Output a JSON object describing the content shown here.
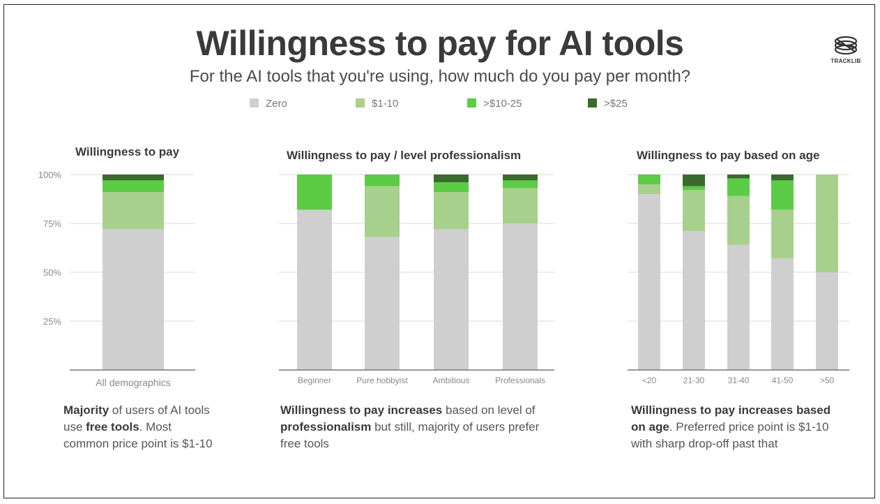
{
  "title": "Willingness to pay for AI tools",
  "subtitle": "For the AI tools that you're using, how much do you pay per month?",
  "logo_text": "TRACKLIB",
  "colors": {
    "zero": "#cfcfcf",
    "p1_10": "#a8d08d",
    "p10_25": "#5ccb46",
    "p25": "#3a6b2c",
    "grid": "#d9d9d9",
    "axis": "#777777"
  },
  "legend": [
    {
      "label": "Zero",
      "color": "#cfcfcf"
    },
    {
      "label": "$1-10",
      "color": "#a8d08d"
    },
    {
      "label": ">$10-25",
      "color": "#5ccb46"
    },
    {
      "label": ">$25",
      "color": "#3a6b2c"
    }
  ],
  "panels": [
    {
      "title": "Willingness to pay"
    },
    {
      "title": "Willingness to pay / level professionalism"
    },
    {
      "title": "Willingness to pay based on age"
    }
  ],
  "descriptions": {
    "d1": {
      "a": "Majority",
      "b": " of users of AI tools use ",
      "c": "free tools",
      "d": ". Most common price point is $1-10"
    },
    "d2": {
      "a": "Willingness to pay increases",
      "b": " based on level of ",
      "c": "professionalism",
      "d": " but still, majority of users prefer free tools"
    },
    "d3": {
      "a": "Willingness to pay increases based on age",
      "b": ". Preferred price point is $1-10 with sharp drop-off past that"
    }
  },
  "chart_data": [
    {
      "type": "bar",
      "stacked": true,
      "title": "Willingness to pay",
      "categories": [
        "All demographics"
      ],
      "yticks": [
        "100%",
        "75%",
        "50%",
        "25%"
      ],
      "ylim": [
        0,
        100
      ],
      "series": [
        {
          "name": "Zero",
          "values": [
            72
          ]
        },
        {
          "name": "$1-10",
          "values": [
            19
          ]
        },
        {
          "name": "$10-25",
          "values": [
            6
          ]
        },
        {
          "name": ">$25",
          "values": [
            3
          ]
        }
      ]
    },
    {
      "type": "bar",
      "stacked": true,
      "title": "Willingness to pay / level professionalism",
      "categories": [
        "Beginner",
        "Pure hobbyist",
        "Ambitious",
        "Professionals"
      ],
      "ylim": [
        0,
        100
      ],
      "series": [
        {
          "name": "Zero",
          "values": [
            82,
            68,
            72,
            75
          ]
        },
        {
          "name": "$1-10",
          "values": [
            0,
            26,
            19,
            18
          ]
        },
        {
          "name": "$10-25",
          "values": [
            18,
            6,
            5,
            4
          ]
        },
        {
          "name": ">$25",
          "values": [
            0,
            0,
            4,
            3
          ]
        }
      ]
    },
    {
      "type": "bar",
      "stacked": true,
      "title": "Willingness to pay based on age",
      "categories": [
        "<20",
        "21-30",
        "31-40",
        "41-50",
        ">50"
      ],
      "ylim": [
        0,
        100
      ],
      "series": [
        {
          "name": "Zero",
          "values": [
            90,
            71,
            64,
            57,
            50
          ]
        },
        {
          "name": "$1-10",
          "values": [
            5,
            21,
            25,
            25,
            50
          ]
        },
        {
          "name": "$10-25",
          "values": [
            5,
            2,
            9,
            15,
            0
          ]
        },
        {
          "name": ">$25",
          "values": [
            0,
            6,
            2,
            3,
            0
          ]
        }
      ]
    }
  ]
}
